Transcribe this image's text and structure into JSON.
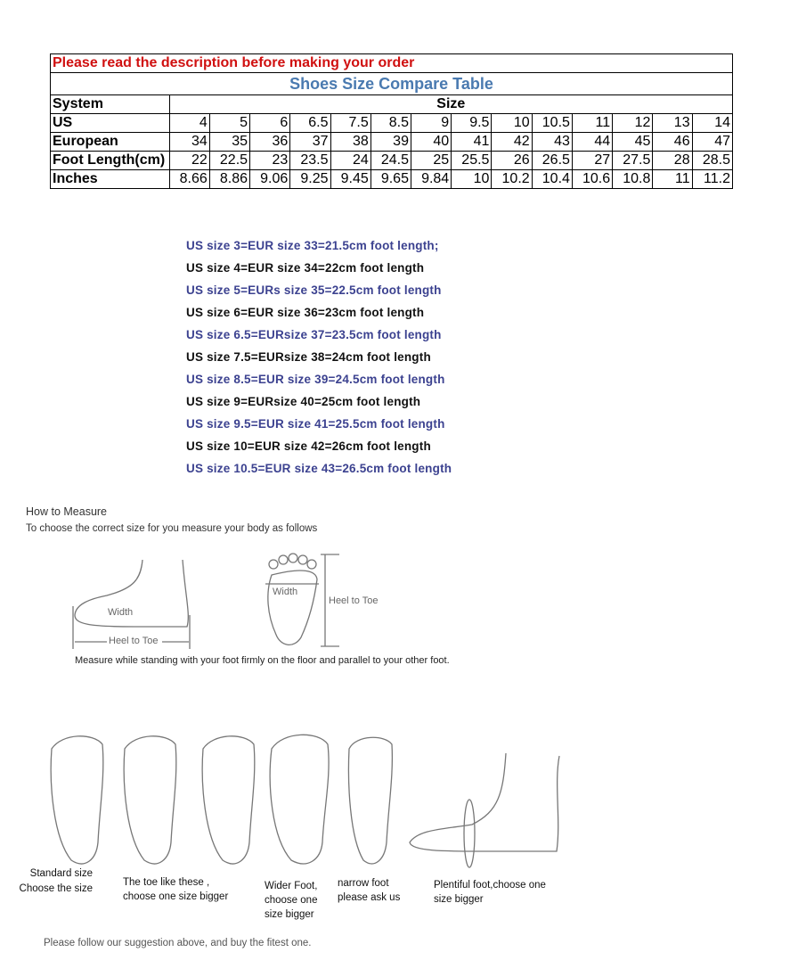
{
  "notice": "Please read the description before making your order",
  "title": "Shoes Size Compare Table",
  "table": {
    "system_label": "System",
    "size_label": "Size",
    "rows": [
      {
        "label": "US",
        "values": [
          "4",
          "5",
          "6",
          "6.5",
          "7.5",
          "8.5",
          "9",
          "9.5",
          "10",
          "10.5",
          "11",
          "12",
          "13",
          "14"
        ]
      },
      {
        "label": "European",
        "values": [
          "34",
          "35",
          "36",
          "37",
          "38",
          "39",
          "40",
          "41",
          "42",
          "43",
          "44",
          "45",
          "46",
          "47"
        ]
      },
      {
        "label": "Foot Length(cm)",
        "values": [
          "22",
          "22.5",
          "23",
          "23.5",
          "24",
          "24.5",
          "25",
          "25.5",
          "26",
          "26.5",
          "27",
          "27.5",
          "28",
          "28.5"
        ]
      },
      {
        "label": "Inches",
        "values": [
          "8.66",
          "8.86",
          "9.06",
          "9.25",
          "9.45",
          "9.65",
          "9.84",
          "10",
          "10.2",
          "10.4",
          "10.6",
          "10.8",
          "11",
          "11.2"
        ]
      }
    ]
  },
  "conversions": [
    "US size 3=EUR size 33=21.5cm foot length;",
    "US size 4=EUR size 34=22cm foot length",
    "US size 5=EURs size 35=22.5cm foot length",
    "US size 6=EUR size 36=23cm foot length",
    "US size 6.5=EURsize 37=23.5cm foot length",
    "US size 7.5=EURsize 38=24cm foot length",
    "US size 8.5=EUR size 39=24.5cm foot length",
    "US size 9=EURsize 40=25cm foot length",
    "US size 9.5=EUR size 41=25.5cm foot length",
    "US size 10=EUR size 42=26cm foot length",
    "US size 10.5=EUR size 43=26.5cm foot length"
  ],
  "measure": {
    "heading": "How to Measure",
    "intro": "To choose the correct size for you measure your body as follows",
    "width_label": "Width",
    "heel_to_toe": "Heel to Toe",
    "width_label2": "Width",
    "heel_to_toe2": "Heel to Toe",
    "instruction": "Measure while standing with your foot firmly on the floor and parallel to your other foot."
  },
  "foot_types": [
    [
      "Standard size",
      "Choose the size"
    ],
    [
      "The toe like these ,",
      "choose one size bigger"
    ],
    [
      "Wider Foot,",
      "choose one",
      "size bigger"
    ],
    [
      "narrow foot",
      "please ask us"
    ],
    [
      "Plentiful foot,choose one",
      "size bigger"
    ]
  ],
  "footer": "Please follow our suggestion above, and buy the fitest one."
}
